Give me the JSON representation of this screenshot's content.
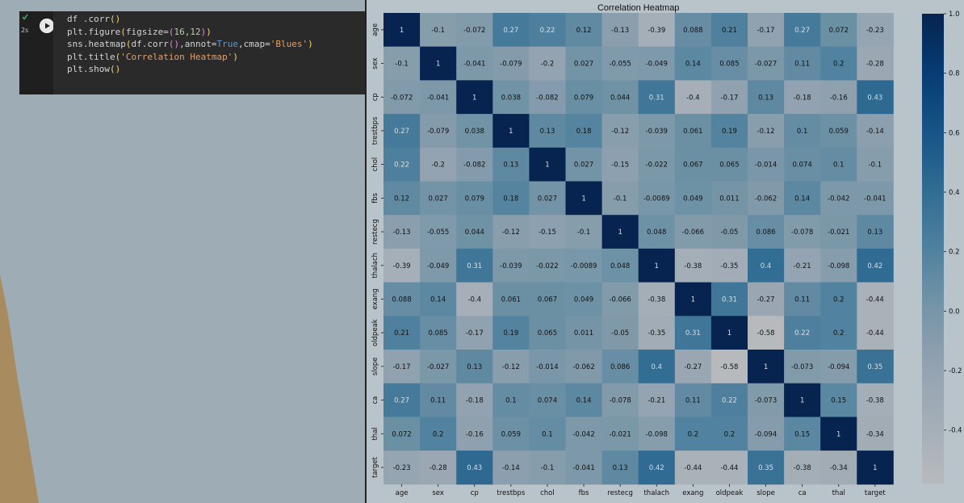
{
  "notebook": {
    "cell": {
      "exec_time": "2s",
      "status_icon": "check-icon",
      "run_icon": "play-icon",
      "lines": [
        [
          {
            "t": "df .corr",
            "c": "#d4d4d4"
          },
          {
            "t": "()",
            "c": "#f3d66b"
          }
        ],
        [
          {
            "t": "plt.figure",
            "c": "#d4d4d4"
          },
          {
            "t": "(",
            "c": "#f3d66b"
          },
          {
            "t": "figsize=",
            "c": "#d4d4d4"
          },
          {
            "t": "(",
            "c": "#d98be6"
          },
          {
            "t": "16,12",
            "c": "#b5cea8"
          },
          {
            "t": ")",
            "c": "#d98be6"
          },
          {
            "t": ")",
            "c": "#f3d66b"
          }
        ],
        [
          {
            "t": "sns.heatmap",
            "c": "#d4d4d4"
          },
          {
            "t": "(",
            "c": "#f3d66b"
          },
          {
            "t": "df.corr",
            "c": "#d4d4d4"
          },
          {
            "t": "()",
            "c": "#d98be6"
          },
          {
            "t": ",annot=",
            "c": "#d4d4d4"
          },
          {
            "t": "True",
            "c": "#569cd6"
          },
          {
            "t": ",cmap=",
            "c": "#d4d4d4"
          },
          {
            "t": "'Blues'",
            "c": "#e0a070"
          },
          {
            "t": ")",
            "c": "#f3d66b"
          }
        ],
        [
          {
            "t": "plt.title",
            "c": "#d4d4d4"
          },
          {
            "t": "(",
            "c": "#f3d66b"
          },
          {
            "t": "'Correlation Heatmap'",
            "c": "#e0a070"
          },
          {
            "t": ")",
            "c": "#f3d66b"
          }
        ],
        [
          {
            "t": "plt.show",
            "c": "#d4d4d4"
          },
          {
            "t": "()",
            "c": "#f3d66b"
          }
        ]
      ]
    }
  },
  "chart_data": {
    "type": "heatmap",
    "title": "Correlation Heatmap",
    "labels": [
      "age",
      "sex",
      "cp",
      "trestbps",
      "chol",
      "fbs",
      "restecg",
      "thalach",
      "exang",
      "oldpeak",
      "slope",
      "ca",
      "thal",
      "target"
    ],
    "values": [
      [
        1,
        -0.1,
        -0.072,
        0.27,
        0.22,
        0.12,
        -0.13,
        -0.39,
        0.088,
        0.21,
        -0.17,
        0.27,
        0.072,
        -0.23
      ],
      [
        -0.1,
        1,
        -0.041,
        -0.079,
        -0.2,
        0.027,
        -0.055,
        -0.049,
        0.14,
        0.085,
        -0.027,
        0.11,
        0.2,
        -0.28
      ],
      [
        -0.072,
        -0.041,
        1,
        0.038,
        -0.082,
        0.079,
        0.044,
        0.31,
        -0.4,
        -0.17,
        0.13,
        -0.18,
        -0.16,
        0.43
      ],
      [
        0.27,
        -0.079,
        0.038,
        1,
        0.13,
        0.18,
        -0.12,
        -0.039,
        0.061,
        0.19,
        -0.12,
        0.1,
        0.059,
        -0.14
      ],
      [
        0.22,
        -0.2,
        -0.082,
        0.13,
        1,
        0.027,
        -0.15,
        -0.022,
        0.067,
        0.065,
        -0.014,
        0.074,
        0.1,
        -0.1
      ],
      [
        0.12,
        0.027,
        0.079,
        0.18,
        0.027,
        1,
        -0.1,
        -0.0089,
        0.049,
        0.011,
        -0.062,
        0.14,
        -0.042,
        -0.041
      ],
      [
        -0.13,
        -0.055,
        0.044,
        -0.12,
        -0.15,
        -0.1,
        1,
        0.048,
        -0.066,
        -0.05,
        0.086,
        -0.078,
        -0.021,
        0.13
      ],
      [
        -0.39,
        -0.049,
        0.31,
        -0.039,
        -0.022,
        -0.0089,
        0.048,
        1,
        -0.38,
        -0.35,
        0.4,
        -0.21,
        -0.098,
        0.42
      ],
      [
        0.088,
        0.14,
        -0.4,
        0.061,
        0.067,
        0.049,
        -0.066,
        -0.38,
        1,
        0.31,
        -0.27,
        0.11,
        0.2,
        -0.44
      ],
      [
        0.21,
        0.085,
        -0.17,
        0.19,
        0.065,
        0.011,
        -0.05,
        -0.35,
        0.31,
        1,
        -0.58,
        0.22,
        0.2,
        -0.44
      ],
      [
        -0.17,
        -0.027,
        0.13,
        -0.12,
        -0.014,
        -0.062,
        0.086,
        0.4,
        -0.27,
        -0.58,
        1,
        -0.073,
        -0.094,
        0.35
      ],
      [
        0.27,
        0.11,
        -0.18,
        0.1,
        0.074,
        0.14,
        -0.078,
        -0.21,
        0.11,
        0.22,
        -0.073,
        1,
        0.15,
        -0.38
      ],
      [
        0.072,
        0.2,
        -0.16,
        0.059,
        0.1,
        -0.042,
        -0.021,
        -0.098,
        0.2,
        0.2,
        -0.094,
        0.15,
        1,
        -0.34
      ],
      [
        -0.23,
        -0.28,
        0.43,
        -0.14,
        -0.1,
        -0.041,
        0.13,
        0.42,
        -0.44,
        -0.44,
        0.35,
        -0.38,
        -0.34,
        1
      ]
    ],
    "colorbar_ticks": [
      "1.0",
      "0.8",
      "0.6",
      "0.4",
      "0.2",
      "0.0",
      "-0.2",
      "-0.4"
    ],
    "colorbar_range": [
      -0.58,
      1.0
    ],
    "colormap": "Blues"
  }
}
